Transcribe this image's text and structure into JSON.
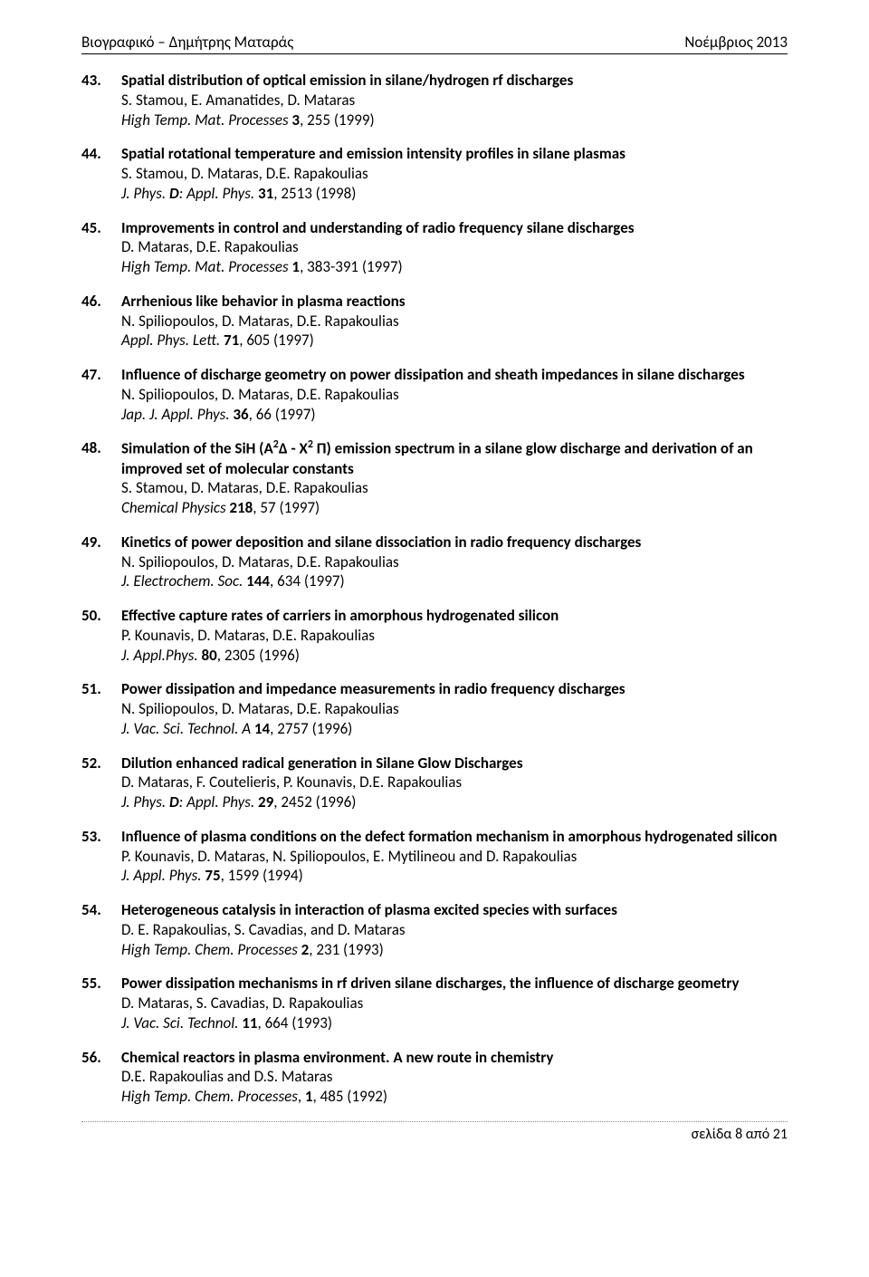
{
  "header": {
    "left": "Βιογραφικό – Δημήτρης Ματαράς",
    "right": "Νοέμβριος 2013"
  },
  "entries": [
    {
      "num": "43.",
      "title": "Spatial distribution of optical emission in silane/hydrogen rf discharges",
      "authors": "S. Stamou, E. Amanatides, D. Mataras",
      "journal_ital": "High Temp. Mat. Processes",
      "journal_bold": " 3",
      "journal_tail": ", 255 (1999)"
    },
    {
      "num": "44.",
      "title": "Spatial rotational temperature and emission intensity profiles in silane plasmas",
      "authors": "S. Stamou, D. Mataras, D.E. Rapakoulias",
      "journal_ital": "J. Phys. ",
      "journal_bolditalic": "D",
      "journal_ital2": ": Appl. Phys.",
      "journal_bold": " 31",
      "journal_tail": ", 2513 (1998)"
    },
    {
      "num": "45.",
      "title": "Improvements in control and understanding of radio frequency silane discharges",
      "authors": "D. Mataras, D.E. Rapakoulias",
      "journal_ital": "High Temp. Mat. Processes",
      "journal_bold": " 1",
      "journal_tail": ", 383-391 (1997)"
    },
    {
      "num": "46.",
      "title": "Arrhenious like behavior in plasma reactions",
      "authors": "N. Spiliopoulos, D. Mataras, D.E. Rapakoulias",
      "journal_ital": "Appl. Phys. Lett.",
      "journal_bold": " 71",
      "journal_tail": ", 605 (1997)"
    },
    {
      "num": "47.",
      "title": "Influence of discharge geometry on power dissipation and sheath impedances in silane discharges",
      "authors": "N. Spiliopoulos, D. Mataras, D.E. Rapakoulias",
      "journal_ital": "Jap. J. Appl. Phys.",
      "journal_bold": " 36",
      "journal_tail": ", 66 (1997)"
    },
    {
      "num": "48.",
      "title_pre": "Simulation of the SiH (A",
      "title_sup1": "2",
      "title_mid": "Δ - X",
      "title_sup2": "2",
      "title_post": " Π) emission spectrum in a silane glow discharge and derivation of an improved set of molecular constants",
      "authors": "S. Stamou, D. Mataras, D.E. Rapakoulias",
      "journal_ital": "Chemical Physics",
      "journal_bold": " 218",
      "journal_tail": ", 57 (1997)"
    },
    {
      "num": "49.",
      "title": "Kinetics of power deposition and silane dissociation in radio frequency discharges",
      "authors": "N. Spiliopoulos, D. Mataras, D.E. Rapakoulias",
      "journal_ital": "J. Electrochem. Soc.",
      "journal_bold": " 144",
      "journal_tail": ", 634 (1997)"
    },
    {
      "num": "50.",
      "title": "Effective capture rates of carriers in amorphous hydrogenated silicon",
      "authors": "P. Kounavis, D. Mataras, D.E. Rapakoulias",
      "journal_ital": "J. Appl.Phys.",
      "journal_bold": " 80",
      "journal_tail": ", 2305 (1996)"
    },
    {
      "num": "51.",
      "title": "Power dissipation and impedance measurements in radio frequency discharges",
      "authors": "N. Spiliopoulos, D. Mataras, D.E. Rapakoulias",
      "journal_ital": "J. Vac. Sci. Technol. A",
      "journal_bold": " 14",
      "journal_tail": ", 2757 (1996)"
    },
    {
      "num": "52.",
      "title": "Dilution enhanced radical generation in Silane Glow Discharges",
      "authors": "D. Mataras, F. Coutelieris, P. Kounavis, D.E. Rapakoulias",
      "journal_ital": "J. Phys. ",
      "journal_bolditalic": "D",
      "journal_ital2": ": Appl. Phys.",
      "journal_bold": " 29",
      "journal_tail": ", 2452 (1996)"
    },
    {
      "num": "53.",
      "title": "Influence of plasma conditions on the defect formation mechanism in amorphous hydrogenated silicon",
      "authors": "P. Kounavis, D. Mataras, N. Spiliopoulos, E. Mytilineou and D. Rapakoulias",
      "journal_ital": "J. Appl. Phys.",
      "journal_bold": " 75",
      "journal_tail": ", 1599 (1994)"
    },
    {
      "num": "54.",
      "title": "Heterogeneous catalysis in interaction of plasma excited species with surfaces",
      "authors": "D. E. Rapakoulias, S. Cavadias, and D. Mataras",
      "journal_ital": "High Temp. Chem. Processes",
      "journal_bold": " 2",
      "journal_tail": ", 231 (1993)"
    },
    {
      "num": "55.",
      "title": "Power dissipation mechanisms in rf driven silane discharges, the influence of discharge geometry",
      "authors": "D. Mataras, S. Cavadias, D. Rapakoulias",
      "journal_ital": "J. Vac. Sci. Technol.",
      "journal_bold": " 11",
      "journal_tail": ", 664 (1993)"
    },
    {
      "num": "56.",
      "title": "Chemical reactors in plasma environment. A new route in chemistry",
      "authors": "D.E. Rapakoulias and D.S. Mataras",
      "journal_ital": "High Temp. Chem. Processes",
      "journal_tail2": ", ",
      "journal_bold": "1",
      "journal_tail": ", 485 (1992)"
    }
  ],
  "footer": "σελίδα 8 από 21"
}
